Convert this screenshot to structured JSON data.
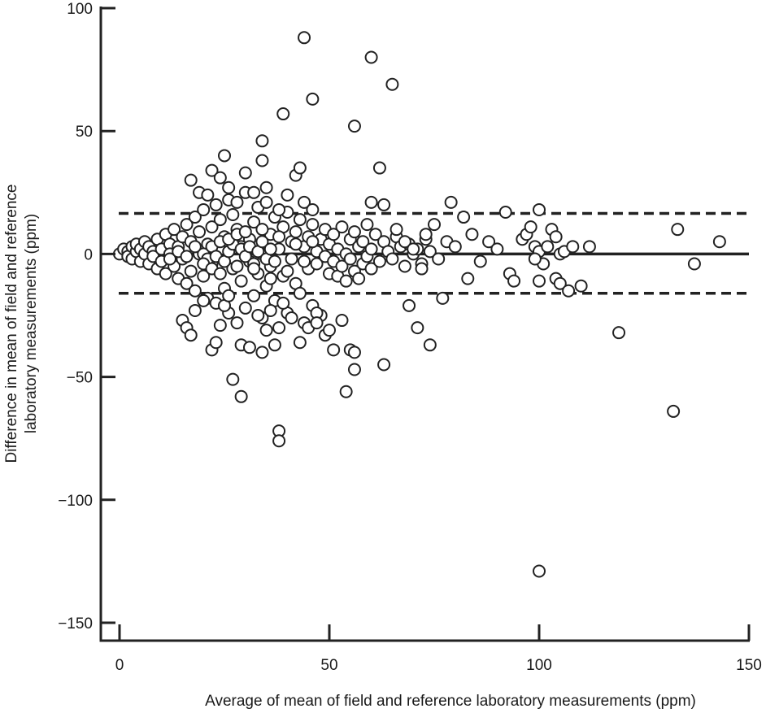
{
  "chart_data": {
    "type": "scatter",
    "title": "",
    "xlabel": "Average of mean of field and reference laboratory measurements (ppm)",
    "ylabel_lines": [
      "Difference in mean of field and reference",
      "laboratory measurements (ppm)"
    ],
    "xlim": [
      0,
      150
    ],
    "ylim": [
      -150,
      100
    ],
    "xticks": [
      0,
      50,
      100,
      150
    ],
    "yticks": [
      -150,
      -100,
      -50,
      0,
      50,
      100
    ],
    "xtick_labels": [
      "0",
      "50",
      "100",
      "150"
    ],
    "ytick_labels": [
      "−150",
      "−100",
      "−50",
      "0",
      "50",
      "100"
    ],
    "grid": false,
    "reference_lines": [
      {
        "kind": "mean",
        "y": 0,
        "style": "solid"
      },
      {
        "kind": "upper_limit",
        "y": 16.5,
        "style": "dashed"
      },
      {
        "kind": "lower_limit",
        "y": -16,
        "style": "dashed"
      }
    ],
    "marker": "open-circle",
    "color": "#222222",
    "points": [
      [
        0,
        0
      ],
      [
        1,
        2
      ],
      [
        2,
        1
      ],
      [
        2,
        -1
      ],
      [
        3,
        3
      ],
      [
        3,
        -2
      ],
      [
        4,
        1
      ],
      [
        4,
        4
      ],
      [
        5,
        -3
      ],
      [
        5,
        2
      ],
      [
        6,
        0
      ],
      [
        6,
        5
      ],
      [
        7,
        -4
      ],
      [
        7,
        3
      ],
      [
        8,
        1
      ],
      [
        8,
        -1
      ],
      [
        9,
        6
      ],
      [
        9,
        -6
      ],
      [
        10,
        2
      ],
      [
        10,
        -3
      ],
      [
        11,
        8
      ],
      [
        11,
        -8
      ],
      [
        12,
        4
      ],
      [
        12,
        0
      ],
      [
        13,
        -5
      ],
      [
        13,
        10
      ],
      [
        14,
        -10
      ],
      [
        14,
        3
      ],
      [
        15,
        7
      ],
      [
        15,
        -2
      ],
      [
        16,
        12
      ],
      [
        16,
        -12
      ],
      [
        17,
        5
      ],
      [
        17,
        -7
      ],
      [
        18,
        15
      ],
      [
        18,
        -15
      ],
      [
        19,
        0
      ],
      [
        19,
        9
      ],
      [
        20,
        -9
      ],
      [
        20,
        18
      ],
      [
        21,
        -18
      ],
      [
        21,
        4
      ],
      [
        22,
        11
      ],
      [
        22,
        -4
      ],
      [
        23,
        20
      ],
      [
        23,
        -20
      ],
      [
        24,
        2
      ],
      [
        24,
        14
      ],
      [
        25,
        -14
      ],
      [
        25,
        7
      ],
      [
        26,
        -24
      ],
      [
        26,
        22
      ],
      [
        27,
        -6
      ],
      [
        27,
        16
      ],
      [
        28,
        -28
      ],
      [
        28,
        10
      ],
      [
        29,
        3
      ],
      [
        29,
        -11
      ],
      [
        30,
        25
      ],
      [
        30,
        -22
      ],
      [
        31,
        6
      ],
      [
        31,
        -3
      ],
      [
        32,
        13
      ],
      [
        32,
        -17
      ],
      [
        33,
        19
      ],
      [
        33,
        -8
      ],
      [
        34,
        0
      ],
      [
        34,
        -26
      ],
      [
        35,
        21
      ],
      [
        35,
        -13
      ],
      [
        36,
        8
      ],
      [
        36,
        -5
      ],
      [
        37,
        15
      ],
      [
        37,
        -19
      ],
      [
        38,
        2
      ],
      [
        38,
        -30
      ],
      [
        39,
        11
      ],
      [
        39,
        -9
      ],
      [
        40,
        17
      ],
      [
        40,
        -24
      ],
      [
        41,
        5
      ],
      [
        41,
        -2
      ],
      [
        42,
        9
      ],
      [
        42,
        -12
      ],
      [
        43,
        14
      ],
      [
        43,
        -16
      ],
      [
        44,
        3
      ],
      [
        44,
        -28
      ],
      [
        45,
        7
      ],
      [
        45,
        -6
      ],
      [
        46,
        12
      ],
      [
        46,
        -21
      ],
      [
        47,
        1
      ],
      [
        47,
        -4
      ],
      [
        48,
        6
      ],
      [
        48,
        -25
      ],
      [
        49,
        10
      ],
      [
        49,
        -1
      ],
      [
        50,
        4
      ],
      [
        50,
        -8
      ],
      [
        51,
        8
      ],
      [
        51,
        -3
      ],
      [
        52,
        2
      ],
      [
        52,
        -9
      ],
      [
        53,
        11
      ],
      [
        53,
        -5
      ],
      [
        54,
        0
      ],
      [
        54,
        -11
      ],
      [
        55,
        6
      ],
      [
        55,
        -2
      ],
      [
        56,
        9
      ],
      [
        56,
        -7
      ],
      [
        57,
        3
      ],
      [
        57,
        -10
      ],
      [
        58,
        5
      ],
      [
        58,
        -4
      ],
      [
        59,
        12
      ],
      [
        59,
        -1
      ],
      [
        60,
        2
      ],
      [
        60,
        -6
      ],
      [
        61,
        8
      ],
      [
        62,
        -3
      ],
      [
        63,
        5
      ],
      [
        64,
        1
      ],
      [
        65,
        -2
      ],
      [
        66,
        7
      ],
      [
        67,
        3
      ],
      [
        68,
        -5
      ],
      [
        69,
        4
      ],
      [
        70,
        0
      ],
      [
        71,
        2
      ],
      [
        72,
        -4
      ],
      [
        73,
        6
      ],
      [
        74,
        1
      ],
      [
        20,
        0
      ],
      [
        21,
        -2
      ],
      [
        22,
        3
      ],
      [
        23,
        -1
      ],
      [
        24,
        5
      ],
      [
        25,
        -3
      ],
      [
        26,
        1
      ],
      [
        27,
        4
      ],
      [
        28,
        -5
      ],
      [
        29,
        2
      ],
      [
        30,
        -1
      ],
      [
        31,
        3
      ],
      [
        32,
        -4
      ],
      [
        33,
        1
      ],
      [
        34,
        5
      ],
      [
        35,
        -2
      ],
      [
        36,
        2
      ],
      [
        37,
        -3
      ],
      [
        12,
        -2
      ],
      [
        14,
        1
      ],
      [
        16,
        -1
      ],
      [
        18,
        3
      ],
      [
        20,
        -4
      ],
      [
        22,
        -6
      ],
      [
        24,
        -8
      ],
      [
        26,
        6
      ],
      [
        28,
        8
      ],
      [
        30,
        9
      ],
      [
        32,
        -6
      ],
      [
        34,
        10
      ],
      [
        36,
        -10
      ],
      [
        38,
        7
      ],
      [
        40,
        -7
      ],
      [
        42,
        4
      ],
      [
        44,
        -3
      ],
      [
        46,
        5
      ],
      [
        15,
        -27
      ],
      [
        16,
        -30
      ],
      [
        17,
        -33
      ],
      [
        18,
        -23
      ],
      [
        20,
        -19
      ],
      [
        22,
        -39
      ],
      [
        23,
        -36
      ],
      [
        24,
        -29
      ],
      [
        25,
        -21
      ],
      [
        26,
        -17
      ],
      [
        29,
        -37
      ],
      [
        31,
        -38
      ],
      [
        33,
        -25
      ],
      [
        34,
        -40
      ],
      [
        35,
        -31
      ],
      [
        36,
        -23
      ],
      [
        37,
        -37
      ],
      [
        39,
        -20
      ],
      [
        41,
        -26
      ],
      [
        43,
        -36
      ],
      [
        45,
        -30
      ],
      [
        47,
        -24
      ],
      [
        49,
        -33
      ],
      [
        50,
        -31
      ],
      [
        51,
        -39
      ],
      [
        53,
        -27
      ],
      [
        55,
        -39
      ],
      [
        56,
        -40
      ],
      [
        47,
        -28
      ],
      [
        17,
        30
      ],
      [
        19,
        25
      ],
      [
        21,
        24
      ],
      [
        22,
        34
      ],
      [
        24,
        31
      ],
      [
        25,
        40
      ],
      [
        26,
        27
      ],
      [
        28,
        21
      ],
      [
        30,
        33
      ],
      [
        32,
        25
      ],
      [
        34,
        38
      ],
      [
        35,
        27
      ],
      [
        38,
        18
      ],
      [
        40,
        24
      ],
      [
        42,
        32
      ],
      [
        43,
        35
      ],
      [
        44,
        21
      ],
      [
        46,
        18
      ],
      [
        27,
        -51
      ],
      [
        29,
        -58
      ],
      [
        38,
        -72
      ],
      [
        38,
        -76
      ],
      [
        54,
        -56
      ],
      [
        56,
        -47
      ],
      [
        63,
        -45
      ],
      [
        34,
        46
      ],
      [
        39,
        57
      ],
      [
        44,
        88
      ],
      [
        46,
        63
      ],
      [
        56,
        52
      ],
      [
        60,
        80
      ],
      [
        65,
        69
      ],
      [
        62,
        35
      ],
      [
        60,
        21
      ],
      [
        63,
        20
      ],
      [
        66,
        10
      ],
      [
        68,
        5
      ],
      [
        70,
        2
      ],
      [
        72,
        -6
      ],
      [
        73,
        8
      ],
      [
        75,
        12
      ],
      [
        76,
        -2
      ],
      [
        78,
        5
      ],
      [
        80,
        3
      ],
      [
        82,
        15
      ],
      [
        83,
        -10
      ],
      [
        84,
        8
      ],
      [
        86,
        -3
      ],
      [
        88,
        5
      ],
      [
        90,
        2
      ],
      [
        92,
        17
      ],
      [
        93,
        -8
      ],
      [
        94,
        -11
      ],
      [
        69,
        -21
      ],
      [
        71,
        -30
      ],
      [
        74,
        -37
      ],
      [
        77,
        -18
      ],
      [
        79,
        21
      ],
      [
        96,
        6
      ],
      [
        97,
        8
      ],
      [
        98,
        11
      ],
      [
        99,
        3
      ],
      [
        100,
        1
      ],
      [
        101,
        -4
      ],
      [
        99,
        -2
      ],
      [
        100,
        -11
      ],
      [
        102,
        3
      ],
      [
        103,
        10
      ],
      [
        104,
        -10
      ],
      [
        105,
        -12
      ],
      [
        105,
        0
      ],
      [
        106,
        1
      ],
      [
        107,
        -15
      ],
      [
        108,
        3
      ],
      [
        110,
        -13
      ],
      [
        112,
        3
      ],
      [
        100,
        18
      ],
      [
        104,
        7
      ],
      [
        119,
        -32
      ],
      [
        132,
        -64
      ],
      [
        133,
        10
      ],
      [
        137,
        -4
      ],
      [
        143,
        5
      ],
      [
        100,
        -129
      ]
    ]
  }
}
